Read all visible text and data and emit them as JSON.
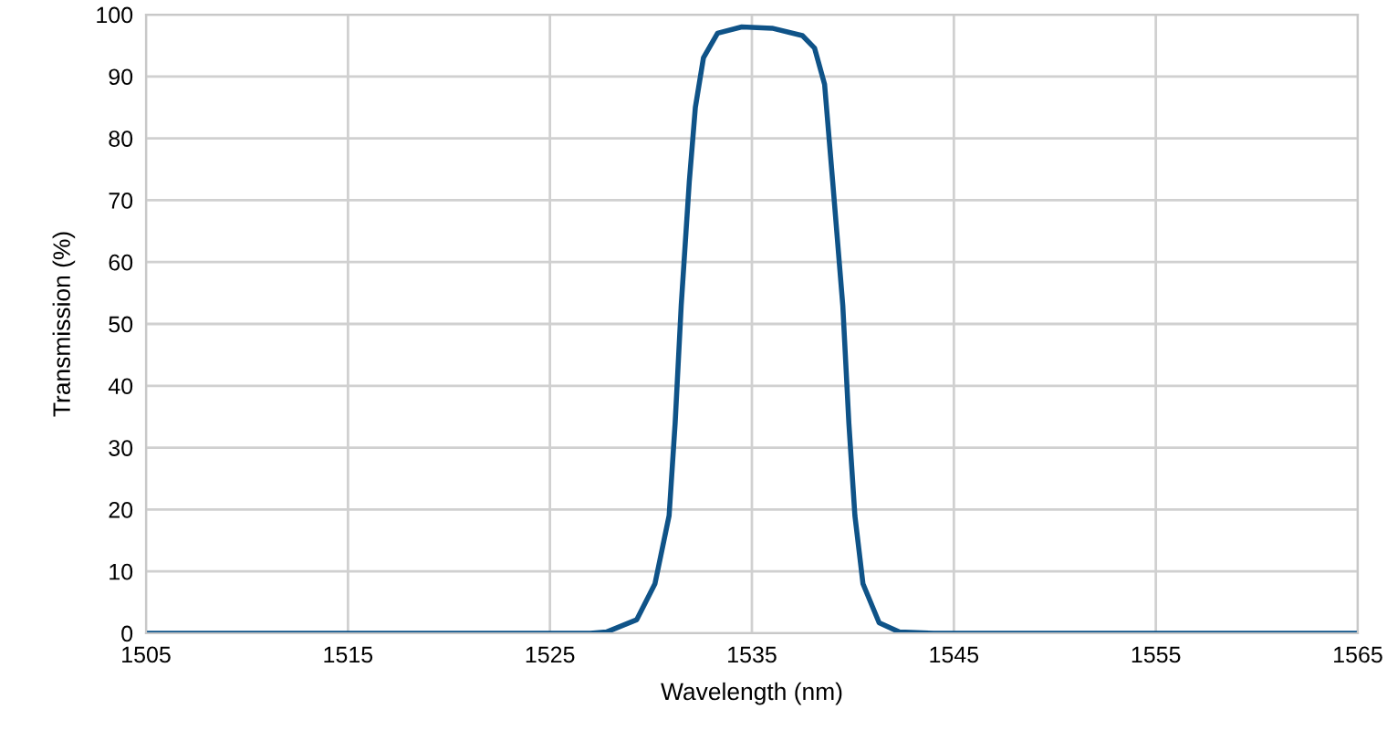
{
  "chart_data": {
    "type": "line",
    "xlabel": "Wavelength (nm)",
    "ylabel": "Transmission (%)",
    "series": [
      {
        "color": "#0f5388",
        "x": [
          1505,
          1527,
          1527.8,
          1529.3,
          1530.2,
          1530.9,
          1531.2,
          1531.5,
          1531.9,
          1532.2,
          1532.6,
          1533.3,
          1534.5,
          1536,
          1537.5,
          1538.1,
          1538.6,
          1539,
          1539.5,
          1539.8,
          1540.1,
          1540.5,
          1541.3,
          1542.3,
          1544,
          1565
        ],
        "values": [
          0,
          0,
          0.2,
          2.2,
          8,
          19,
          34,
          53,
          73,
          85,
          93,
          97,
          98,
          97.8,
          96.6,
          94.6,
          88.7,
          73,
          53,
          34,
          19,
          8,
          1.7,
          0.2,
          0,
          0
        ]
      }
    ],
    "xlim": [
      1505,
      1565
    ],
    "xticks": [
      1505,
      1515,
      1525,
      1535,
      1545,
      1555,
      1565
    ],
    "ylim": [
      0,
      100
    ],
    "yticks": [
      0,
      10,
      20,
      30,
      40,
      50,
      60,
      70,
      80,
      90,
      100
    ],
    "grid": true,
    "marker": "none",
    "line_style": "solid"
  }
}
